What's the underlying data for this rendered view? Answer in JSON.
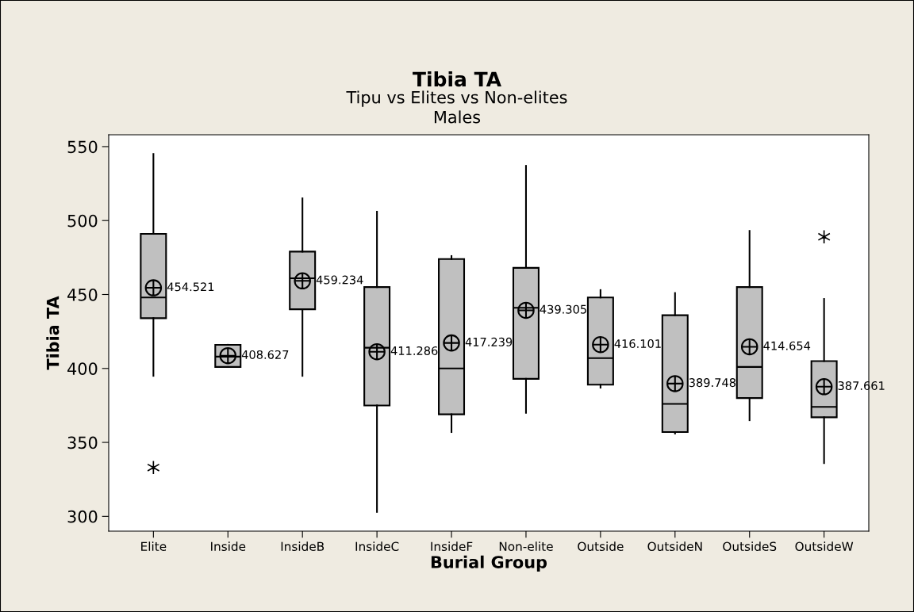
{
  "chart_data": {
    "type": "box",
    "title": "Tibia TA",
    "subtitle": "Tipu vs Elites vs Non-elites\nMales",
    "xlabel": "Burial Group",
    "ylabel": "Tibia TA",
    "categories": [
      "Elite",
      "Inside",
      "InsideB",
      "InsideC",
      "InsideF",
      "Non-elite",
      "Outside",
      "OutsideN",
      "OutsideS",
      "OutsideW"
    ],
    "boxes": [
      {
        "low": 395,
        "q1": 434,
        "median": 448,
        "q3": 491,
        "high": 545,
        "mean": 454.521,
        "outliers": [
          333
        ]
      },
      {
        "low": 401,
        "q1": 401,
        "median": 408,
        "q3": 416,
        "high": 416,
        "mean": 408.627
      },
      {
        "low": 395,
        "q1": 440,
        "median": 461,
        "q3": 479,
        "high": 515,
        "mean": 459.234
      },
      {
        "low": 303,
        "q1": 375,
        "median": 414,
        "q3": 455,
        "high": 506,
        "mean": 411.286
      },
      {
        "low": 357,
        "q1": 369,
        "median": 400,
        "q3": 474,
        "high": 476,
        "mean": 417.239
      },
      {
        "low": 370,
        "q1": 393,
        "median": 441,
        "q3": 468,
        "high": 537,
        "mean": 439.305
      },
      {
        "low": 387,
        "q1": 389,
        "median": 407,
        "q3": 448,
        "high": 453,
        "mean": 416.101
      },
      {
        "low": 356,
        "q1": 357,
        "median": 376,
        "q3": 436,
        "high": 451,
        "mean": 389.748
      },
      {
        "low": 365,
        "q1": 380,
        "median": 401,
        "q3": 455,
        "high": 493,
        "mean": 414.654
      },
      {
        "low": 336,
        "q1": 367,
        "median": 374,
        "q3": 405,
        "high": 447,
        "mean": 387.661,
        "outliers": [
          489
        ]
      }
    ],
    "annotations": [
      "454.521",
      "408.627",
      "459.234",
      "411.286",
      "417.239",
      "439.305",
      "416.101",
      "389.748",
      "414.654",
      "387.661"
    ],
    "color": "#c0c0c0",
    "grid": false,
    "legend": false,
    "ylim": [
      290,
      558
    ],
    "yticks": [
      300,
      350,
      400,
      450,
      500,
      550
    ]
  }
}
